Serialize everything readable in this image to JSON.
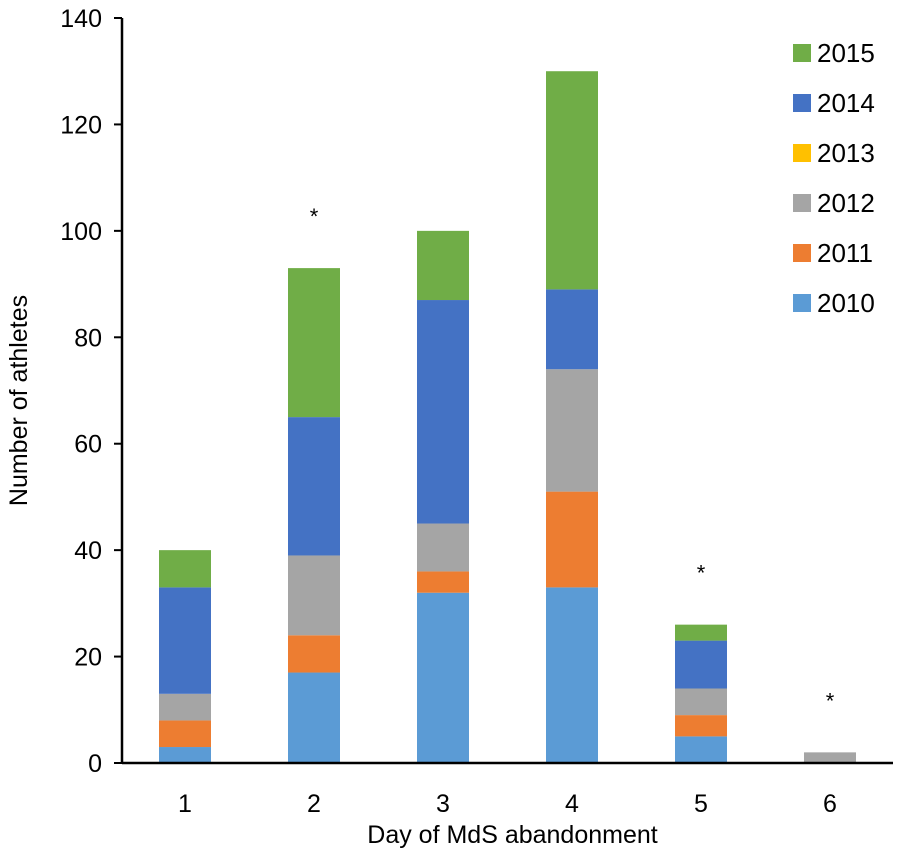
{
  "chart_data": {
    "type": "bar",
    "stacked": true,
    "title": "",
    "xlabel": "Day of MdS abandonment",
    "ylabel": "Number of athletes",
    "ylim": [
      0,
      140
    ],
    "yticks": [
      "0",
      "20",
      "40",
      "60",
      "80",
      "100",
      "120",
      "140"
    ],
    "categories": [
      "1",
      "2",
      "3",
      "4",
      "5",
      "6"
    ],
    "series": [
      {
        "name": "2010",
        "color": "#5b9bd5",
        "values": [
          3,
          17,
          32,
          33,
          5,
          0
        ]
      },
      {
        "name": "2011",
        "color": "#ed7d31",
        "values": [
          5,
          7,
          4,
          18,
          4,
          0
        ]
      },
      {
        "name": "2012",
        "color": "#a5a5a5",
        "values": [
          5,
          15,
          9,
          23,
          5,
          2
        ]
      },
      {
        "name": "2013",
        "color": "#ffc000",
        "values": [
          0,
          0,
          0,
          0,
          0,
          0
        ]
      },
      {
        "name": "2014",
        "color": "#4472c4",
        "values": [
          20,
          26,
          42,
          15,
          9,
          0
        ]
      },
      {
        "name": "2015",
        "color": "#70ad47",
        "values": [
          7,
          28,
          13,
          41,
          3,
          0
        ]
      }
    ],
    "annotations": [
      {
        "category": "2",
        "text": "*"
      },
      {
        "category": "5",
        "text": "*"
      },
      {
        "category": "6",
        "text": "*"
      }
    ],
    "legend": {
      "position": "top-right",
      "order": [
        "2015",
        "2014",
        "2013",
        "2012",
        "2011",
        "2010"
      ]
    },
    "grid": false
  }
}
